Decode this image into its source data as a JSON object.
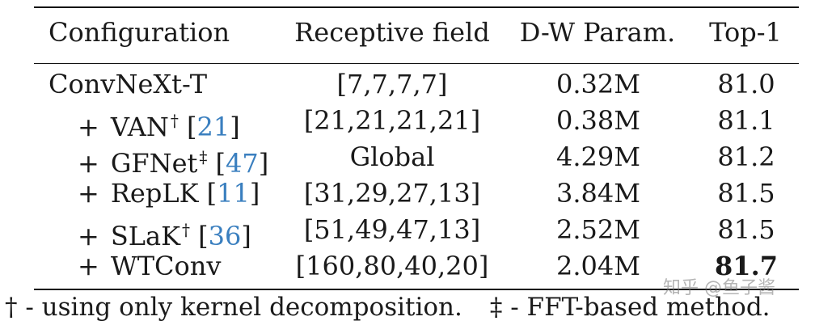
{
  "table": {
    "headers": {
      "configuration": "Configuration",
      "receptive_field": "Receptive field",
      "dw_param": "D-W Param.",
      "top1": "Top-1"
    },
    "rows": [
      {
        "prefix": "",
        "name": "ConvNeXt-T",
        "mark": "",
        "ref": "",
        "receptive_field": "[7,7,7,7]",
        "dw_param": "0.32M",
        "top1": "81.0",
        "bold": false
      },
      {
        "prefix": "+",
        "name": "VAN",
        "mark": "†",
        "ref": "21",
        "receptive_field": "[21,21,21,21]",
        "dw_param": "0.38M",
        "top1": "81.1",
        "bold": false
      },
      {
        "prefix": "+",
        "name": "GFNet",
        "mark": "‡",
        "ref": "47",
        "receptive_field": "Global",
        "dw_param": "4.29M",
        "top1": "81.2",
        "bold": false
      },
      {
        "prefix": "+",
        "name": "RepLK",
        "mark": "",
        "ref": "11",
        "receptive_field": "[31,29,27,13]",
        "dw_param": "3.84M",
        "top1": "81.5",
        "bold": false
      },
      {
        "prefix": "+",
        "name": "SLaK",
        "mark": "†",
        "ref": "36",
        "receptive_field": "[51,49,47,13]",
        "dw_param": "2.52M",
        "top1": "81.5",
        "bold": false
      },
      {
        "prefix": "+",
        "name": "WTConv",
        "mark": "",
        "ref": "",
        "receptive_field": "[160,80,40,20]",
        "dw_param": "2.04M",
        "top1": "81.7",
        "bold": true
      }
    ]
  },
  "footnote": {
    "dagger": "† - using only kernel decomposition.",
    "ddagger": "‡ - FFT-based method."
  },
  "watermark": "知乎 @鱼子酱"
}
